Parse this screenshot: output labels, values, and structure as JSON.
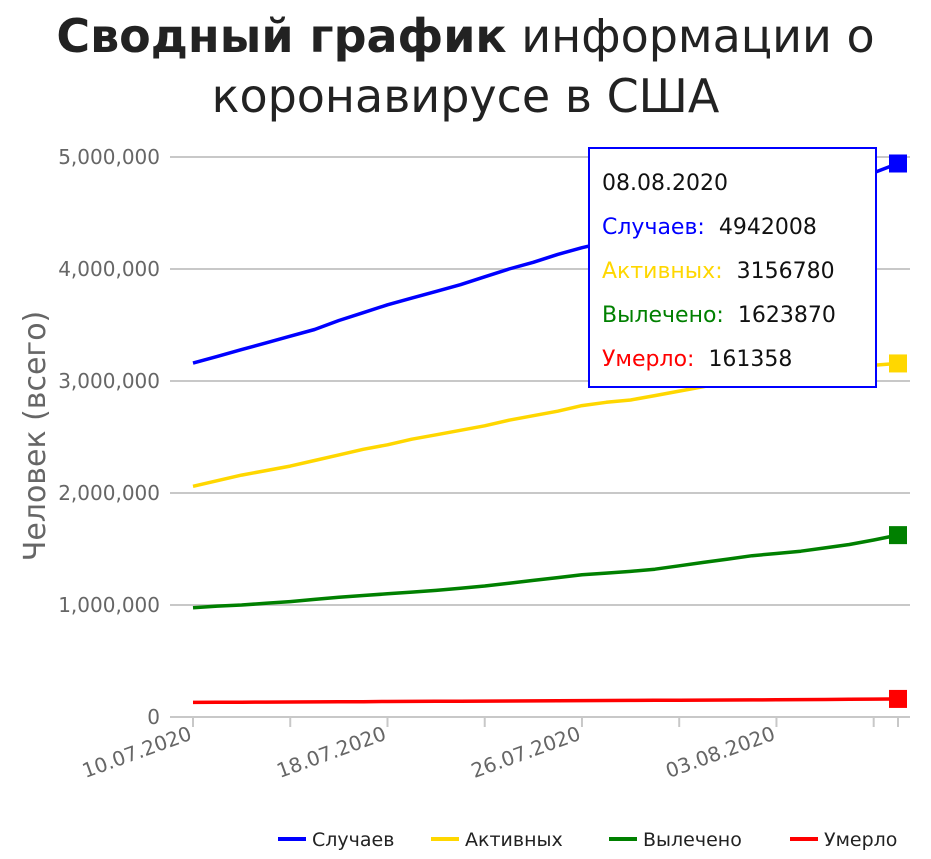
{
  "chart_data": {
    "type": "line",
    "title_bold": "Сводный график",
    "title_rest": " информации о коронавирусе в США",
    "ylabel": "Человек (всего)",
    "xlabel": "",
    "ylim": [
      0,
      5000000
    ],
    "y_ticks": [
      "0",
      "1,000,000",
      "2,000,000",
      "3,000,000",
      "4,000,000",
      "5,000,000"
    ],
    "x_ticks": [
      "10.07.2020",
      "18.07.2020",
      "26.07.2020",
      "03.08.2020"
    ],
    "x": [
      "10.07.2020",
      "11.07.2020",
      "12.07.2020",
      "13.07.2020",
      "14.07.2020",
      "15.07.2020",
      "16.07.2020",
      "17.07.2020",
      "18.07.2020",
      "19.07.2020",
      "20.07.2020",
      "21.07.2020",
      "22.07.2020",
      "23.07.2020",
      "24.07.2020",
      "25.07.2020",
      "26.07.2020",
      "27.07.2020",
      "28.07.2020",
      "29.07.2020",
      "30.07.2020",
      "31.07.2020",
      "01.08.2020",
      "02.08.2020",
      "03.08.2020",
      "04.08.2020",
      "05.08.2020",
      "06.08.2020",
      "07.08.2020",
      "08.08.2020"
    ],
    "series": [
      {
        "name": "Случаев",
        "color": "#0000ff",
        "values": [
          3160000,
          3220000,
          3280000,
          3340000,
          3400000,
          3460000,
          3540000,
          3610000,
          3680000,
          3740000,
          3800000,
          3860000,
          3930000,
          4000000,
          4060000,
          4130000,
          4190000,
          4240000,
          4290000,
          4340000,
          4400000,
          4450000,
          4500000,
          4550000,
          4610000,
          4660000,
          4720000,
          4790000,
          4860000,
          4942008
        ]
      },
      {
        "name": "Активных",
        "color": "#ffd700",
        "values": [
          2060000,
          2110000,
          2160000,
          2200000,
          2240000,
          2290000,
          2340000,
          2390000,
          2430000,
          2480000,
          2520000,
          2560000,
          2600000,
          2650000,
          2690000,
          2730000,
          2780000,
          2810000,
          2830000,
          2870000,
          2910000,
          2950000,
          2990000,
          3020000,
          3050000,
          3070000,
          3090000,
          3120000,
          3140000,
          3156780
        ]
      },
      {
        "name": "Вылечено",
        "color": "#008000",
        "values": [
          975000,
          990000,
          1000000,
          1015000,
          1030000,
          1050000,
          1070000,
          1085000,
          1100000,
          1115000,
          1130000,
          1150000,
          1170000,
          1195000,
          1220000,
          1245000,
          1270000,
          1285000,
          1300000,
          1320000,
          1350000,
          1380000,
          1410000,
          1440000,
          1460000,
          1480000,
          1510000,
          1540000,
          1580000,
          1623870
        ]
      },
      {
        "name": "Умерло",
        "color": "#ff0000",
        "values": [
          130000,
          131000,
          132000,
          133000,
          134000,
          135000,
          136000,
          137000,
          138000,
          139000,
          140000,
          141000,
          142000,
          143000,
          144000,
          145000,
          146000,
          147000,
          148000,
          149000,
          150000,
          151000,
          152000,
          153000,
          154000,
          155000,
          156000,
          158000,
          159500,
          161358
        ]
      }
    ],
    "grid": true,
    "legend_position": "bottom-right"
  },
  "tooltip": {
    "date": "08.08.2020",
    "rows": [
      {
        "label": "Случаев:",
        "value": "4942008",
        "color": "#0000ff"
      },
      {
        "label": "Активных:",
        "value": "3156780",
        "color": "#ffd700"
      },
      {
        "label": "Вылечено:",
        "value": "1623870",
        "color": "#008000"
      },
      {
        "label": "Умерло:",
        "value": "161358",
        "color": "#ff0000"
      }
    ]
  }
}
